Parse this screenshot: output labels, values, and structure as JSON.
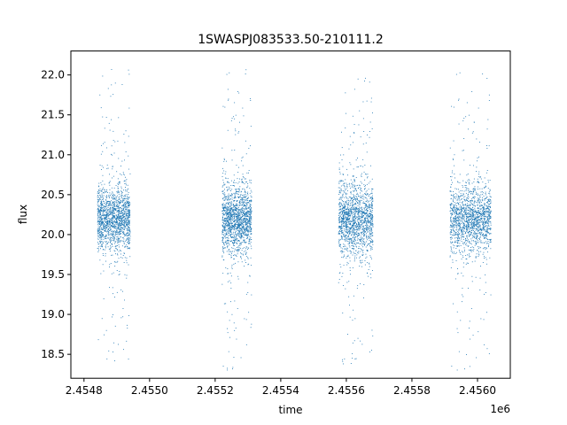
{
  "chart_data": {
    "type": "scatter",
    "title": "1SWASPJ083533.50-210111.2",
    "xlabel": "time",
    "ylabel": "flux",
    "x_offset_label": "1e6",
    "xlim": [
      2454760,
      2456100
    ],
    "ylim": [
      18.2,
      22.3
    ],
    "x_ticks": [
      2454800,
      2455000,
      2455200,
      2455400,
      2455600,
      2455800,
      2456000
    ],
    "x_tick_labels": [
      "2.4548",
      "2.4550",
      "2.4552",
      "2.4554",
      "2.4556",
      "2.4558",
      "2.4560"
    ],
    "y_ticks": [
      18.5,
      19.0,
      19.5,
      20.0,
      20.5,
      21.0,
      21.5,
      22.0
    ],
    "y_tick_labels": [
      "18.5",
      "19.0",
      "19.5",
      "20.0",
      "20.5",
      "21.0",
      "21.5",
      "22.0"
    ],
    "grid": false,
    "legend": "none",
    "series_color": "#1f77b4",
    "series": [
      {
        "seasons": [
          {
            "x_range": [
              2454840,
              2454940
            ],
            "center": 20.2,
            "spread": 0.45,
            "high_tail": 22.1,
            "low_tail": 18.3
          },
          {
            "x_range": [
              2455220,
              2455310
            ],
            "center": 20.2,
            "spread": 0.45,
            "high_tail": 22.1,
            "low_tail": 18.3
          },
          {
            "x_range": [
              2455575,
              2455680
            ],
            "center": 20.2,
            "spread": 0.5,
            "high_tail": 22.15,
            "low_tail": 18.35
          },
          {
            "x_range": [
              2455915,
              2456040
            ],
            "center": 20.2,
            "spread": 0.45,
            "high_tail": 22.1,
            "low_tail": 18.3
          }
        ]
      }
    ]
  }
}
